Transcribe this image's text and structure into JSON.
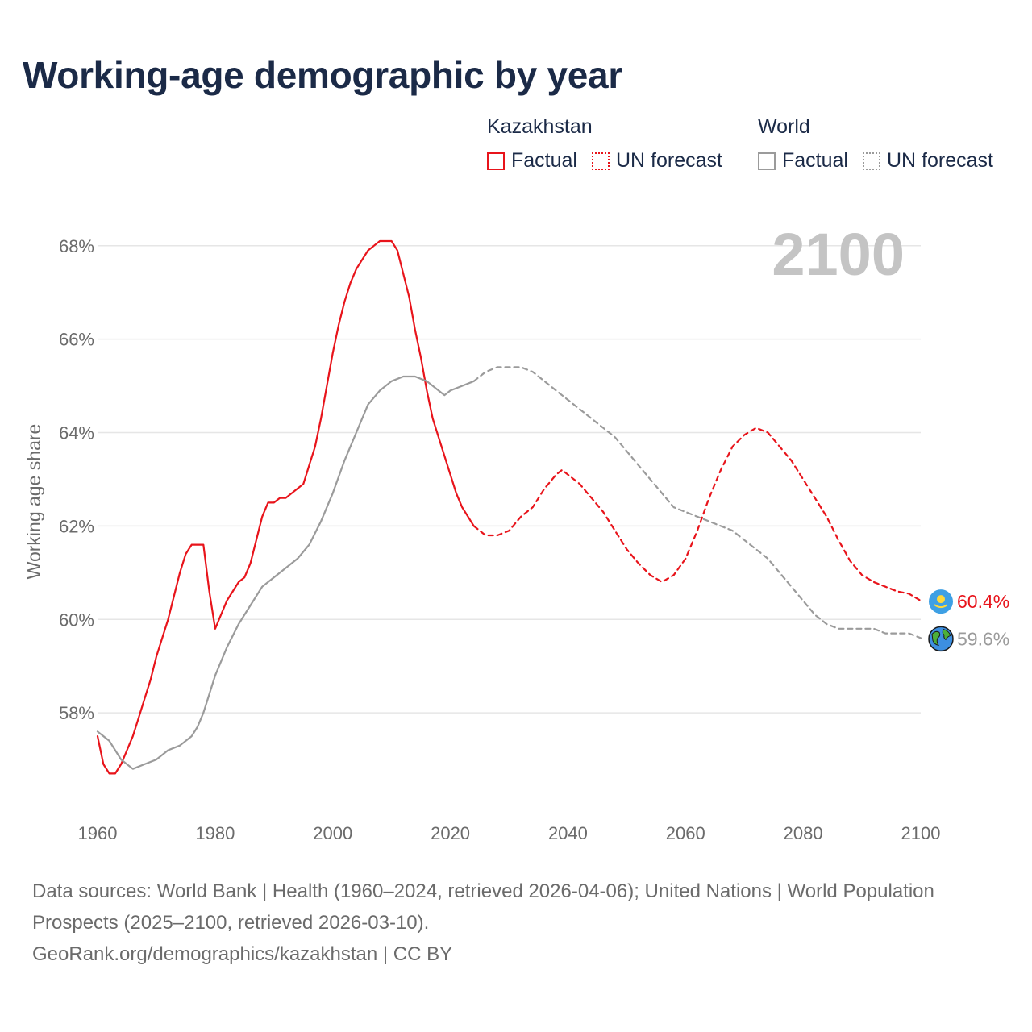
{
  "title": "Working-age demographic by year",
  "legend": {
    "groups": [
      {
        "name": "Kazakhstan",
        "color": "#e8141b",
        "factual_label": "Factual",
        "forecast_label": "UN forecast"
      },
      {
        "name": "World",
        "color": "#9b9b9b",
        "factual_label": "Factual",
        "forecast_label": "UN forecast"
      }
    ]
  },
  "source": {
    "line1": "Data sources: World Bank | Health (1960–2024, retrieved 2026-04-06); United Nations | World Population Prospects (2025–2100, retrieved 2026-03-10).",
    "line2": "GeoRank.org/demographics/kazakhstan | CC BY"
  },
  "chart_data": {
    "type": "line",
    "title": "Working-age demographic by year",
    "xlabel": "",
    "ylabel": "Working age share",
    "xlim": [
      1960,
      2100
    ],
    "ylim": [
      56.0,
      68.6
    ],
    "x_ticks": [
      1960,
      1980,
      2000,
      2020,
      2040,
      2060,
      2080,
      2100
    ],
    "y_ticks": [
      58,
      60,
      62,
      64,
      66,
      68
    ],
    "y_tick_format": "%",
    "grid": true,
    "year_annotation": "2100",
    "series": [
      {
        "name": "Kazakhstan",
        "part": "Factual",
        "color": "#e8141b",
        "dash": false,
        "points": [
          [
            1960,
            57.5
          ],
          [
            1961,
            56.9
          ],
          [
            1962,
            56.7
          ],
          [
            1963,
            56.7
          ],
          [
            1964,
            56.9
          ],
          [
            1965,
            57.2
          ],
          [
            1966,
            57.5
          ],
          [
            1967,
            57.9
          ],
          [
            1968,
            58.3
          ],
          [
            1969,
            58.7
          ],
          [
            1970,
            59.2
          ],
          [
            1971,
            59.6
          ],
          [
            1972,
            60.0
          ],
          [
            1973,
            60.5
          ],
          [
            1974,
            61.0
          ],
          [
            1975,
            61.4
          ],
          [
            1976,
            61.6
          ],
          [
            1977,
            61.6
          ],
          [
            1978,
            61.6
          ],
          [
            1979,
            60.6
          ],
          [
            1980,
            59.8
          ],
          [
            1981,
            60.1
          ],
          [
            1982,
            60.4
          ],
          [
            1983,
            60.6
          ],
          [
            1984,
            60.8
          ],
          [
            1985,
            60.9
          ],
          [
            1986,
            61.2
          ],
          [
            1987,
            61.7
          ],
          [
            1988,
            62.2
          ],
          [
            1989,
            62.5
          ],
          [
            1990,
            62.5
          ],
          [
            1991,
            62.6
          ],
          [
            1992,
            62.6
          ],
          [
            1993,
            62.7
          ],
          [
            1994,
            62.8
          ],
          [
            1995,
            62.9
          ],
          [
            1996,
            63.3
          ],
          [
            1997,
            63.7
          ],
          [
            1998,
            64.3
          ],
          [
            1999,
            65.0
          ],
          [
            2000,
            65.7
          ],
          [
            2001,
            66.3
          ],
          [
            2002,
            66.8
          ],
          [
            2003,
            67.2
          ],
          [
            2004,
            67.5
          ],
          [
            2005,
            67.7
          ],
          [
            2006,
            67.9
          ],
          [
            2007,
            68.0
          ],
          [
            2008,
            68.1
          ],
          [
            2009,
            68.1
          ],
          [
            2010,
            68.1
          ],
          [
            2011,
            67.9
          ],
          [
            2012,
            67.4
          ],
          [
            2013,
            66.9
          ],
          [
            2014,
            66.2
          ],
          [
            2015,
            65.6
          ],
          [
            2016,
            64.9
          ],
          [
            2017,
            64.3
          ],
          [
            2018,
            63.9
          ],
          [
            2019,
            63.5
          ],
          [
            2020,
            63.1
          ],
          [
            2021,
            62.7
          ],
          [
            2022,
            62.4
          ],
          [
            2023,
            62.2
          ],
          [
            2024,
            62.0
          ]
        ]
      },
      {
        "name": "Kazakhstan",
        "part": "UN forecast",
        "color": "#e8141b",
        "dash": true,
        "points": [
          [
            2024,
            62.0
          ],
          [
            2026,
            61.8
          ],
          [
            2028,
            61.8
          ],
          [
            2030,
            61.9
          ],
          [
            2032,
            62.2
          ],
          [
            2034,
            62.4
          ],
          [
            2036,
            62.8
          ],
          [
            2038,
            63.1
          ],
          [
            2039,
            63.2
          ],
          [
            2040,
            63.1
          ],
          [
            2042,
            62.9
          ],
          [
            2044,
            62.6
          ],
          [
            2046,
            62.3
          ],
          [
            2048,
            61.9
          ],
          [
            2050,
            61.5
          ],
          [
            2052,
            61.2
          ],
          [
            2054,
            60.95
          ],
          [
            2056,
            60.8
          ],
          [
            2058,
            60.95
          ],
          [
            2060,
            61.3
          ],
          [
            2062,
            61.9
          ],
          [
            2064,
            62.6
          ],
          [
            2066,
            63.2
          ],
          [
            2068,
            63.7
          ],
          [
            2070,
            63.95
          ],
          [
            2072,
            64.1
          ],
          [
            2074,
            64.0
          ],
          [
            2076,
            63.7
          ],
          [
            2078,
            63.4
          ],
          [
            2080,
            63.0
          ],
          [
            2082,
            62.6
          ],
          [
            2084,
            62.2
          ],
          [
            2086,
            61.7
          ],
          [
            2088,
            61.25
          ],
          [
            2090,
            60.95
          ],
          [
            2092,
            60.8
          ],
          [
            2094,
            60.7
          ],
          [
            2096,
            60.6
          ],
          [
            2098,
            60.55
          ],
          [
            2100,
            60.4
          ]
        ]
      },
      {
        "name": "World",
        "part": "Factual",
        "color": "#9b9b9b",
        "dash": false,
        "points": [
          [
            1960,
            57.6
          ],
          [
            1962,
            57.4
          ],
          [
            1964,
            57.0
          ],
          [
            1966,
            56.8
          ],
          [
            1968,
            56.9
          ],
          [
            1970,
            57.0
          ],
          [
            1972,
            57.2
          ],
          [
            1974,
            57.3
          ],
          [
            1976,
            57.5
          ],
          [
            1977,
            57.7
          ],
          [
            1978,
            58.0
          ],
          [
            1979,
            58.4
          ],
          [
            1980,
            58.8
          ],
          [
            1982,
            59.4
          ],
          [
            1984,
            59.9
          ],
          [
            1986,
            60.3
          ],
          [
            1988,
            60.7
          ],
          [
            1990,
            60.9
          ],
          [
            1992,
            61.1
          ],
          [
            1994,
            61.3
          ],
          [
            1996,
            61.6
          ],
          [
            1998,
            62.1
          ],
          [
            2000,
            62.7
          ],
          [
            2002,
            63.4
          ],
          [
            2004,
            64.0
          ],
          [
            2006,
            64.6
          ],
          [
            2008,
            64.9
          ],
          [
            2010,
            65.1
          ],
          [
            2012,
            65.2
          ],
          [
            2014,
            65.2
          ],
          [
            2016,
            65.1
          ],
          [
            2018,
            64.9
          ],
          [
            2019,
            64.8
          ],
          [
            2020,
            64.9
          ],
          [
            2022,
            65.0
          ],
          [
            2024,
            65.1
          ]
        ]
      },
      {
        "name": "World",
        "part": "UN forecast",
        "color": "#9b9b9b",
        "dash": true,
        "points": [
          [
            2024,
            65.1
          ],
          [
            2026,
            65.3
          ],
          [
            2028,
            65.4
          ],
          [
            2030,
            65.4
          ],
          [
            2032,
            65.4
          ],
          [
            2034,
            65.3
          ],
          [
            2036,
            65.1
          ],
          [
            2038,
            64.9
          ],
          [
            2040,
            64.7
          ],
          [
            2042,
            64.5
          ],
          [
            2044,
            64.3
          ],
          [
            2046,
            64.1
          ],
          [
            2048,
            63.9
          ],
          [
            2050,
            63.6
          ],
          [
            2052,
            63.3
          ],
          [
            2054,
            63.0
          ],
          [
            2056,
            62.7
          ],
          [
            2058,
            62.4
          ],
          [
            2060,
            62.3
          ],
          [
            2062,
            62.2
          ],
          [
            2064,
            62.1
          ],
          [
            2066,
            62.0
          ],
          [
            2068,
            61.9
          ],
          [
            2070,
            61.7
          ],
          [
            2072,
            61.5
          ],
          [
            2074,
            61.3
          ],
          [
            2076,
            61.0
          ],
          [
            2078,
            60.7
          ],
          [
            2080,
            60.4
          ],
          [
            2082,
            60.1
          ],
          [
            2084,
            59.9
          ],
          [
            2086,
            59.8
          ],
          [
            2088,
            59.8
          ],
          [
            2090,
            59.8
          ],
          [
            2092,
            59.8
          ],
          [
            2094,
            59.7
          ],
          [
            2096,
            59.7
          ],
          [
            2098,
            59.7
          ],
          [
            2100,
            59.6
          ]
        ]
      }
    ],
    "end_labels": [
      {
        "name": "Kazakhstan",
        "value": 60.4,
        "text": "60.4%",
        "color": "#e8141b",
        "icon": "kazakhstan-flag-icon"
      },
      {
        "name": "World",
        "value": 59.6,
        "text": "59.6%",
        "color": "#9b9b9b",
        "icon": "globe-icon"
      }
    ]
  }
}
